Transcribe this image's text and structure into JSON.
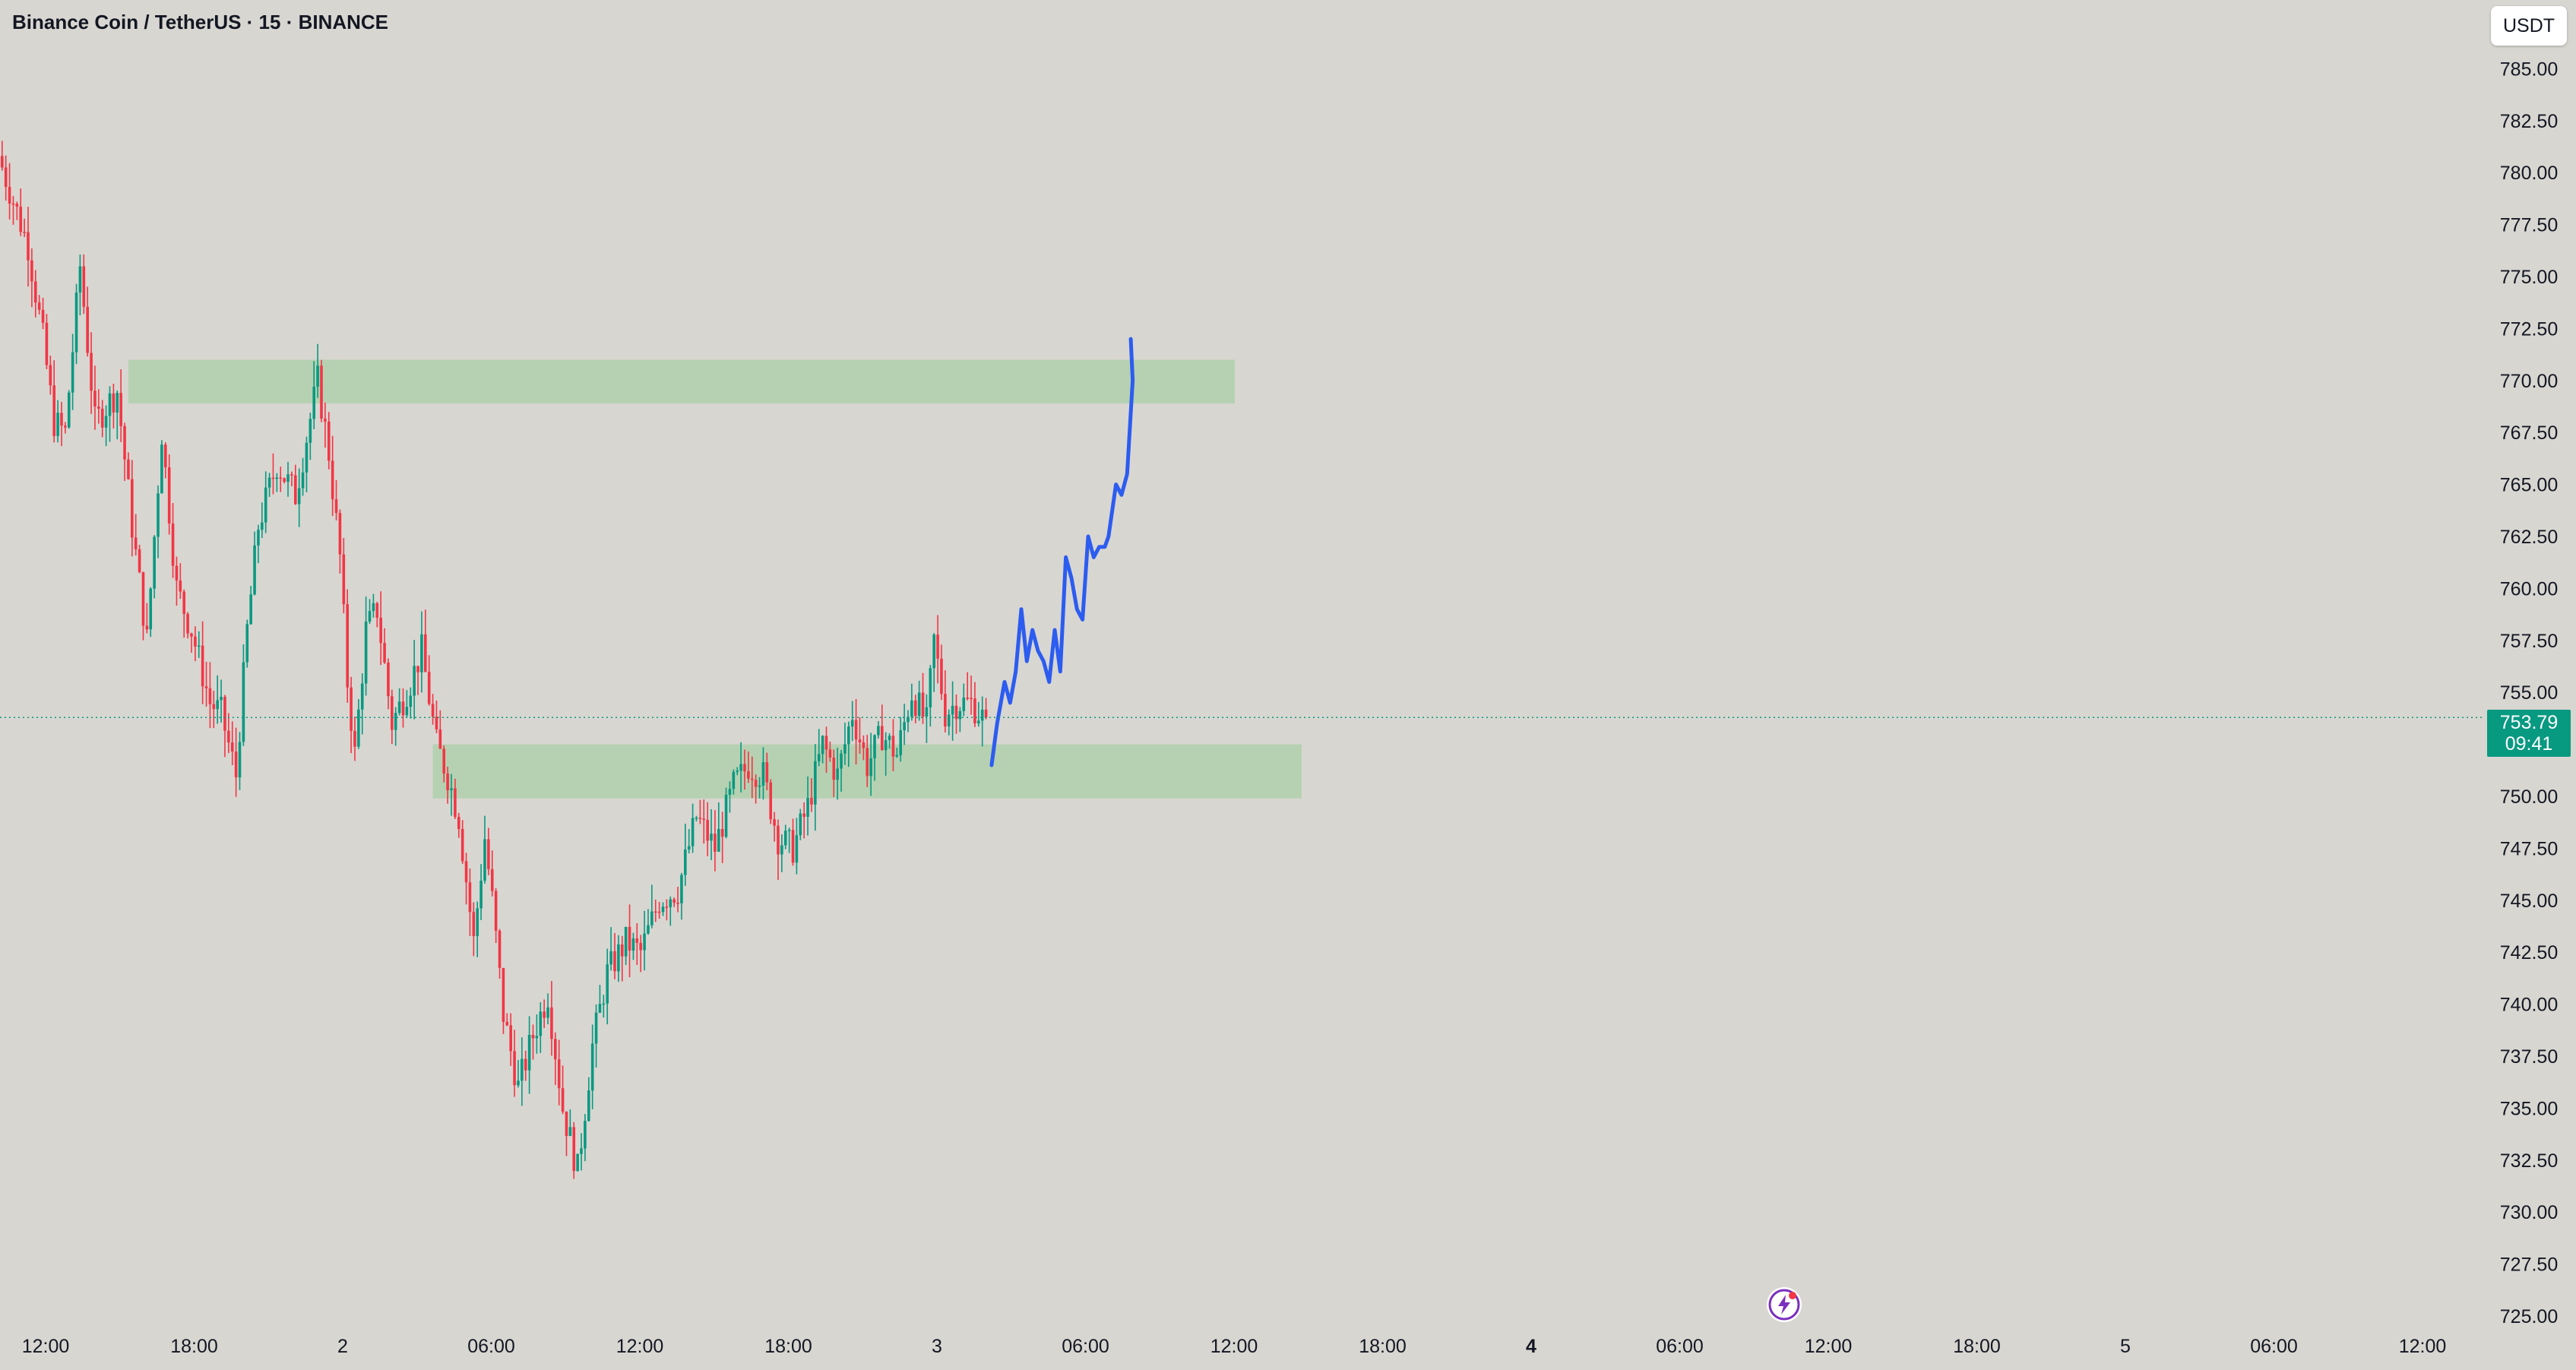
{
  "title": "Binance Coin / TetherUS · 15 · BINANCE",
  "currency_button": "USDT",
  "current_price": {
    "value": "753.79",
    "countdown": "09:41",
    "color": "#089981"
  },
  "colors": {
    "background": "#d8d6d1",
    "up_candle": "#089981",
    "down_candle": "#f23645",
    "zone": "#b5d1b2",
    "drawing": "#2c5cf0",
    "axis_text": "#131722"
  },
  "icons": [
    "lightning-bolt-icon"
  ],
  "chart_data": {
    "type": "candlestick",
    "symbol": "BNBUSDT",
    "interval": "15",
    "y_axis": {
      "range": [
        725,
        786.5
      ],
      "ticks": [
        "785.00",
        "782.50",
        "780.00",
        "777.50",
        "775.00",
        "772.50",
        "770.00",
        "767.50",
        "765.00",
        "762.50",
        "760.00",
        "757.50",
        "755.00",
        "752.50",
        "750.00",
        "747.50",
        "745.00",
        "742.50",
        "740.00",
        "737.50",
        "735.00",
        "732.50",
        "730.00",
        "727.50",
        "725.00"
      ]
    },
    "x_axis": {
      "ticks": [
        "12:00",
        "18:00",
        "2",
        "06:00",
        "12:00",
        "18:00",
        "3",
        "06:00",
        "12:00",
        "18:00",
        "4",
        "06:00",
        "12:00",
        "18:00",
        "5",
        "06:00",
        "12:00"
      ],
      "bold_ticks": [
        "4"
      ]
    },
    "candle_count": 360,
    "price_path": [
      [
        0,
        780.8
      ],
      [
        8,
        776.5
      ],
      [
        12,
        772.0
      ],
      [
        15,
        768.0
      ],
      [
        18,
        767.5
      ],
      [
        22,
        775.5
      ],
      [
        26,
        768.0
      ],
      [
        32,
        769.5
      ],
      [
        36,
        763.0
      ],
      [
        40,
        757.5
      ],
      [
        44,
        767.5
      ],
      [
        48,
        760.0
      ],
      [
        52,
        758.0
      ],
      [
        57,
        754.5
      ],
      [
        60,
        754.0
      ],
      [
        64,
        751.0
      ],
      [
        67,
        758.0
      ],
      [
        70,
        763.0
      ],
      [
        75,
        766.0
      ],
      [
        80,
        764.5
      ],
      [
        86,
        770.0
      ],
      [
        89,
        766.5
      ],
      [
        92,
        761.5
      ],
      [
        94,
        755.5
      ],
      [
        96,
        752.0
      ],
      [
        99,
        758.0
      ],
      [
        102,
        759.0
      ],
      [
        106,
        753.5
      ],
      [
        111,
        755.5
      ],
      [
        114,
        757.0
      ],
      [
        118,
        752.5
      ],
      [
        121,
        751.0
      ],
      [
        124,
        749.0
      ],
      [
        128,
        743.0
      ],
      [
        131,
        748.0
      ],
      [
        133,
        745.0
      ],
      [
        136,
        739.5
      ],
      [
        140,
        736.0
      ],
      [
        144,
        738.5
      ],
      [
        148,
        740.5
      ],
      [
        152,
        735.0
      ],
      [
        156,
        732.0
      ],
      [
        160,
        738.0
      ],
      [
        164,
        741.5
      ],
      [
        169,
        743.0
      ],
      [
        173,
        742.5
      ],
      [
        178,
        745.0
      ],
      [
        183,
        745.5
      ],
      [
        188,
        749.0
      ],
      [
        193,
        747.5
      ],
      [
        198,
        750.5
      ],
      [
        202,
        751.5
      ],
      [
        206,
        751.0
      ],
      [
        210,
        748.0
      ],
      [
        214,
        747.5
      ],
      [
        218,
        749.5
      ],
      [
        222,
        752.5
      ],
      [
        226,
        751.0
      ],
      [
        230,
        754.0
      ],
      [
        234,
        751.5
      ],
      [
        238,
        753.0
      ],
      [
        242,
        752.0
      ],
      [
        246,
        755.0
      ],
      [
        250,
        753.5
      ],
      [
        252,
        757.5
      ],
      [
        255,
        754.0
      ],
      [
        258,
        754.5
      ],
      [
        262,
        754.5
      ],
      [
        265,
        753.79
      ]
    ],
    "zones": [
      {
        "from_index": 34,
        "to_index": 332,
        "low": 768.9,
        "high": 771.0
      },
      {
        "from_index": 116,
        "to_index": 350,
        "low": 749.9,
        "high": 752.5
      }
    ],
    "projection_path": [
      [
        266.5,
        751.5
      ],
      [
        268,
        753.5
      ],
      [
        270,
        755.5
      ],
      [
        271.5,
        754.5
      ],
      [
        273,
        756.0
      ],
      [
        274.5,
        759.0
      ],
      [
        276,
        756.5
      ],
      [
        277.5,
        758.0
      ],
      [
        279,
        757.0
      ],
      [
        280.5,
        756.5
      ],
      [
        282,
        755.5
      ],
      [
        283.5,
        758.0
      ],
      [
        285,
        756.0
      ],
      [
        286.5,
        761.5
      ],
      [
        288,
        760.5
      ],
      [
        289.5,
        759.0
      ],
      [
        291,
        758.5
      ],
      [
        292.5,
        762.5
      ],
      [
        294,
        761.5
      ],
      [
        295.5,
        762.0
      ],
      [
        297,
        762.0
      ],
      [
        298,
        762.5
      ],
      [
        300,
        765.0
      ],
      [
        301.5,
        764.5
      ],
      [
        303,
        765.5
      ],
      [
        304.5,
        770.0
      ],
      [
        304,
        772.0
      ]
    ],
    "current_price": 753.79
  }
}
